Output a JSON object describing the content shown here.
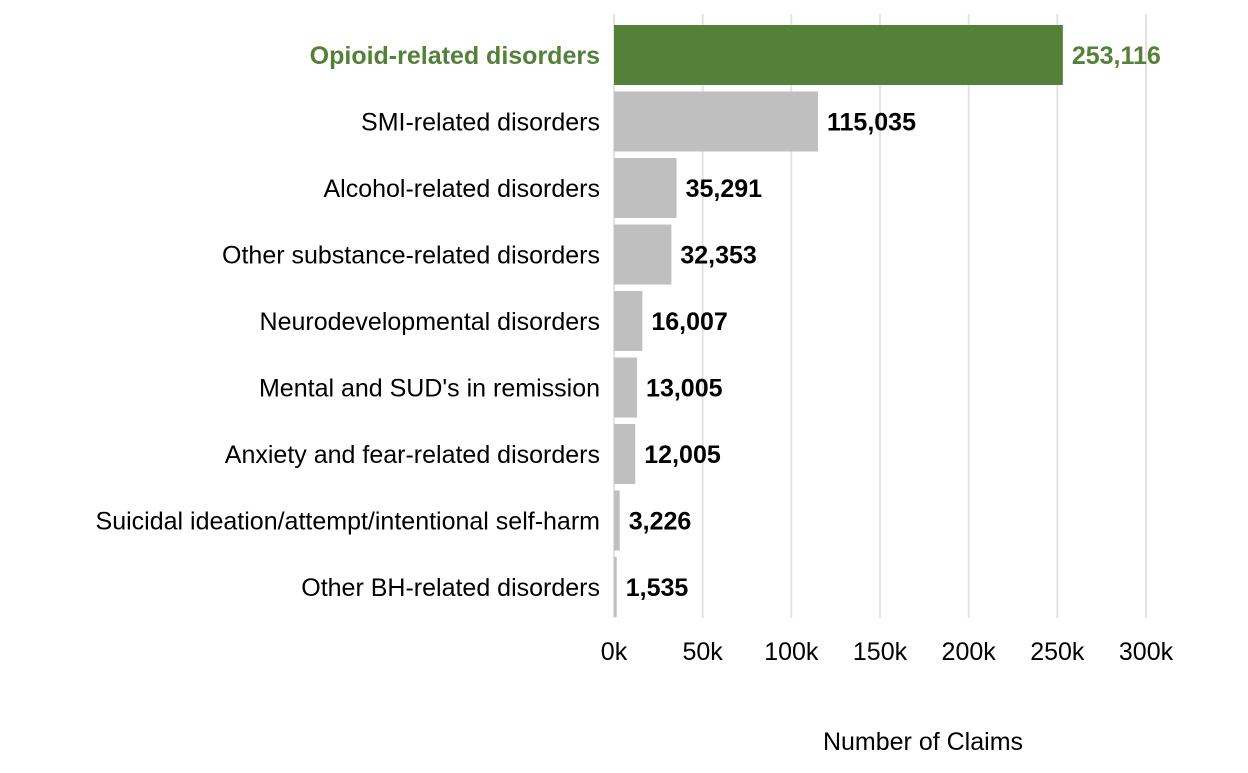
{
  "chart_data": {
    "type": "bar",
    "orientation": "horizontal",
    "title": "",
    "xlabel": "Number of Claims",
    "ylabel": "",
    "categories": [
      "Opioid-related disorders",
      "SMI-related disorders",
      "Alcohol-related disorders",
      "Other substance-related disorders",
      "Neurodevelopmental disorders",
      "Mental and SUD's in remission",
      "Anxiety and fear-related disorders",
      "Suicidal ideation/attempt/intentional self-harm",
      "Other BH-related disorders"
    ],
    "values": [
      253116,
      115035,
      35291,
      32353,
      16007,
      13005,
      12005,
      3226,
      1535
    ],
    "value_labels": [
      "253,116",
      "115,035",
      "35,291",
      "32,353",
      "16,007",
      "13,005",
      "12,005",
      "3,226",
      "1,535"
    ],
    "highlight_index": 0,
    "xlim": [
      0,
      300000
    ],
    "x_ticks": [
      0,
      50000,
      100000,
      150000,
      200000,
      250000,
      300000
    ],
    "x_tick_labels": [
      "0k",
      "50k",
      "100k",
      "150k",
      "200k",
      "250k",
      "300k"
    ],
    "grid": "vertical",
    "legend": "none",
    "colors": {
      "highlight": "#548139",
      "bar": "#bfbfbf",
      "grid": "#e3e3e3",
      "text": "#000000"
    }
  }
}
